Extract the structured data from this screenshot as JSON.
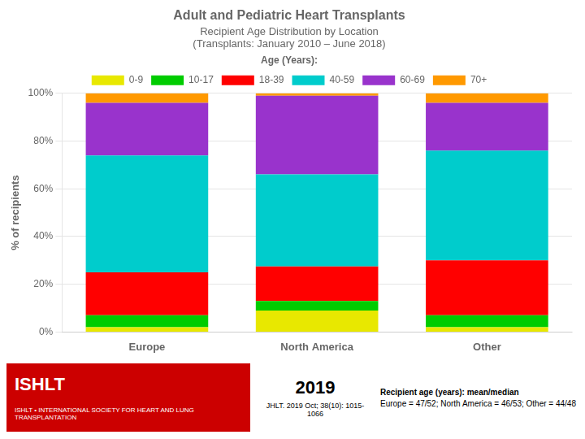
{
  "chart_data": {
    "type": "bar",
    "title": "Adult and Pediatric Heart Transplants",
    "subtitle": [
      "Recipient Age Distribution by Location",
      "(Transplants: January 2010 – June 2018)"
    ],
    "ylabel": "% of recipients",
    "legend_title": "Age (Years):",
    "annotations": [
      [
        "ISHLT",
        "ISHLT • INTERNATIONAL SOCIETY FOR HEART AND LUNG TRANSPLANTATION"
      ],
      [
        "2019",
        "JHLT. 2019 Oct; 38(10): 1015-1066"
      ],
      [
        "Recipient age (years): mean/median",
        "Europe = 47/52; North America = 46/53; Other = 44/48"
      ]
    ],
    "categories": [
      "Europe",
      "North America",
      "Other"
    ],
    "series": [
      {
        "name": "0-9",
        "color": "#e8e800",
        "values": [
          2.0,
          9.0,
          2.0
        ]
      },
      {
        "name": "10-17",
        "color": "#00cc00",
        "values": [
          5.0,
          4.0,
          5.0
        ]
      },
      {
        "name": "18-39",
        "color": "#ff0000",
        "values": [
          18.0,
          14.5,
          23.0
        ]
      },
      {
        "name": "40-59",
        "color": "#00cccc",
        "values": [
          49.0,
          38.5,
          46.0
        ]
      },
      {
        "name": "60-69",
        "color": "#9933cc",
        "values": [
          22.0,
          33.0,
          20.0
        ]
      },
      {
        "name": "70+",
        "color": "#ff9900",
        "values": [
          4.0,
          1.0,
          4.0
        ]
      }
    ],
    "stacked": true,
    "ylim": [
      0,
      100
    ],
    "yticks": [
      {
        "value": 0,
        "label": "0%"
      },
      {
        "value": 20,
        "label": "20%"
      },
      {
        "value": 40,
        "label": "40%"
      },
      {
        "value": 60,
        "label": "60%"
      },
      {
        "value": 80,
        "label": "80%"
      },
      {
        "value": 100,
        "label": "100%"
      }
    ],
    "grid": "y",
    "legend": "top"
  }
}
